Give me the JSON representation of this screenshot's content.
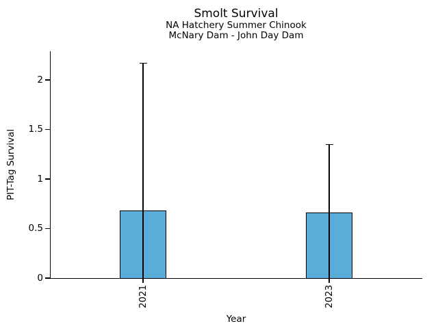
{
  "chart_data": {
    "type": "bar",
    "title": "Smolt Survival",
    "subtitle1": "NA Hatchery Summer Chinook",
    "subtitle2": "McNary Dam - John Day Dam",
    "xlabel": "Year",
    "ylabel": "PIT-Tag Survival",
    "categories": [
      "2021",
      "2023"
    ],
    "values": [
      0.68,
      0.66
    ],
    "error_high": [
      2.17,
      1.35
    ],
    "error_low": [
      0,
      0
    ],
    "ylim": [
      0,
      2.29
    ],
    "yticks": [
      0,
      0.5,
      1,
      1.5,
      2
    ],
    "ytick_labels": [
      "0",
      "0.5",
      "1",
      "1.5",
      "2"
    ],
    "grid": false,
    "legend": "none",
    "bar_color": "#59ADD8",
    "edge_color": "#000000",
    "text_color": "#000000"
  }
}
